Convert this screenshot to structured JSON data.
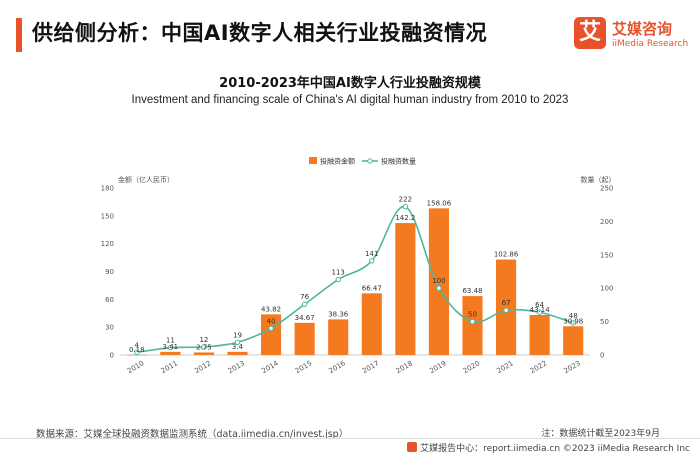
{
  "header": {
    "title": "供给侧分析：中国AI数字人相关行业投融资情况",
    "logo_mark": "艾",
    "logo_cn": "艾媒咨询",
    "logo_en": "iiMedia Research"
  },
  "chart_data": {
    "type": "bar",
    "title": "2010-2023年中国AI数字人行业投融资规模",
    "subtitle": "Investment and financing scale of China's AI digital human industry from 2010 to 2023",
    "categories": [
      "2010",
      "2011",
      "2012",
      "2013",
      "2014",
      "2015",
      "2016",
      "2017",
      "2018",
      "2019",
      "2020",
      "2021",
      "2022",
      "2023"
    ],
    "series": [
      {
        "name": "投融资金额",
        "type": "bar",
        "axis": "left",
        "color": "#f47a20",
        "values": [
          0.18,
          3.41,
          2.75,
          3.4,
          43.82,
          34.67,
          38.36,
          66.47,
          142.2,
          158.06,
          63.48,
          102.86,
          43.14,
          30.98
        ]
      },
      {
        "name": "投融资数量",
        "type": "line",
        "axis": "right",
        "color": "#4db6a2",
        "values": [
          4,
          11,
          12,
          19,
          40,
          76,
          113,
          141,
          222,
          100,
          50,
          67,
          64,
          48
        ]
      }
    ],
    "ylabel": "金额（亿人民币）",
    "ylim": [
      0,
      180
    ],
    "yticks": [
      0,
      30,
      60,
      90,
      120,
      150,
      180
    ],
    "y2label": "数量（起）",
    "y2lim": [
      0,
      250
    ],
    "y2ticks": [
      0,
      50,
      100,
      150,
      200,
      250
    ],
    "legend_position": "top-center",
    "grid": false
  },
  "footer": {
    "source": "数据来源：艾媒全球投融资数据监测系统（data.iimedia.cn/invest.jsp）",
    "note": "注：数据统计截至2023年9月",
    "bottom_text": "艾媒报告中心：report.iimedia.cn  ©2023 iiMedia Research Inc"
  }
}
